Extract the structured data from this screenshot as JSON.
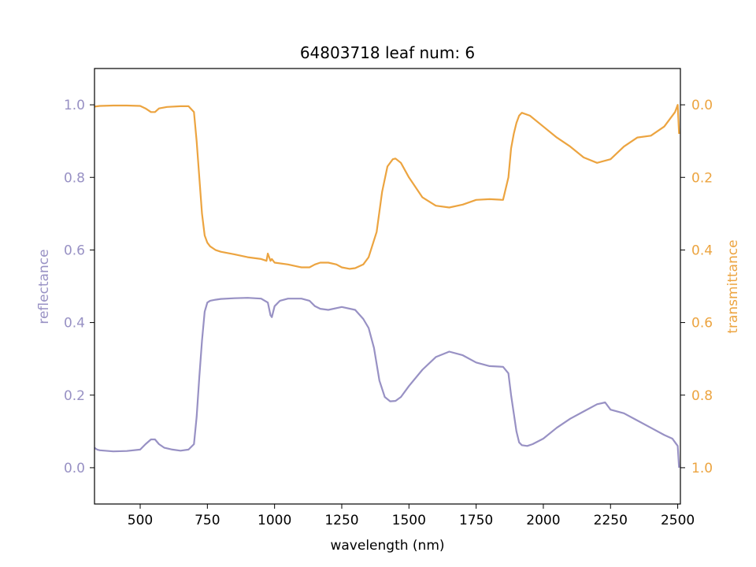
{
  "chart_data": {
    "type": "line",
    "title": "64803718 leaf num: 6",
    "xlabel": "wavelength (nm)",
    "ylabel_left": "reflectance",
    "ylabel_right": "transmittance",
    "xlim": [
      330,
      2510
    ],
    "ylim_left": [
      -0.1,
      1.1
    ],
    "ylim_right": [
      1.1,
      -0.1
    ],
    "x_ticks": [
      500,
      750,
      1000,
      1250,
      1500,
      1750,
      2000,
      2250,
      2500
    ],
    "y_left_ticks": [
      0.0,
      0.2,
      0.4,
      0.6,
      0.8,
      1.0
    ],
    "y_right_ticks": [
      0.0,
      0.2,
      0.4,
      0.6,
      0.8,
      1.0
    ],
    "colors": {
      "reflectance": "#9891c4",
      "transmittance": "#eca440"
    },
    "grid": false,
    "series": [
      {
        "key": "reflectance",
        "axis": "left",
        "x": [
          330,
          340,
          350,
          400,
          450,
          500,
          520,
          540,
          555,
          570,
          590,
          620,
          650,
          680,
          700,
          710,
          720,
          730,
          740,
          750,
          760,
          780,
          800,
          850,
          900,
          950,
          975,
          985,
          990,
          1000,
          1020,
          1050,
          1100,
          1130,
          1150,
          1170,
          1200,
          1250,
          1300,
          1330,
          1350,
          1370,
          1390,
          1410,
          1430,
          1450,
          1470,
          1500,
          1550,
          1600,
          1650,
          1700,
          1750,
          1800,
          1850,
          1870,
          1880,
          1890,
          1900,
          1910,
          1920,
          1940,
          1960,
          2000,
          2050,
          2100,
          2150,
          2200,
          2230,
          2250,
          2300,
          2350,
          2400,
          2450,
          2480,
          2490,
          2500,
          2505
        ],
        "values": [
          0.055,
          0.05,
          0.048,
          0.045,
          0.046,
          0.05,
          0.065,
          0.078,
          0.078,
          0.065,
          0.055,
          0.05,
          0.047,
          0.05,
          0.065,
          0.14,
          0.25,
          0.35,
          0.43,
          0.455,
          0.46,
          0.463,
          0.465,
          0.467,
          0.468,
          0.466,
          0.455,
          0.42,
          0.415,
          0.445,
          0.46,
          0.466,
          0.466,
          0.46,
          0.445,
          0.438,
          0.435,
          0.443,
          0.435,
          0.41,
          0.385,
          0.33,
          0.24,
          0.195,
          0.183,
          0.184,
          0.195,
          0.225,
          0.27,
          0.305,
          0.32,
          0.31,
          0.29,
          0.28,
          0.278,
          0.26,
          0.2,
          0.15,
          0.1,
          0.07,
          0.062,
          0.06,
          0.065,
          0.08,
          0.11,
          0.135,
          0.155,
          0.175,
          0.18,
          0.16,
          0.15,
          0.13,
          0.11,
          0.09,
          0.08,
          0.07,
          0.06,
          0.0
        ]
      },
      {
        "key": "transmittance",
        "axis": "right",
        "x": [
          330,
          350,
          400,
          450,
          500,
          520,
          540,
          555,
          570,
          600,
          650,
          680,
          700,
          710,
          720,
          730,
          740,
          750,
          760,
          780,
          800,
          850,
          900,
          950,
          970,
          975,
          980,
          985,
          990,
          1000,
          1050,
          1100,
          1130,
          1150,
          1170,
          1200,
          1230,
          1250,
          1280,
          1300,
          1330,
          1350,
          1380,
          1400,
          1420,
          1440,
          1450,
          1470,
          1500,
          1550,
          1600,
          1650,
          1700,
          1750,
          1800,
          1850,
          1870,
          1880,
          1890,
          1900,
          1910,
          1920,
          1950,
          2000,
          2050,
          2100,
          2150,
          2200,
          2250,
          2300,
          2350,
          2400,
          2450,
          2490,
          2500,
          2505
        ],
        "values": [
          0.005,
          0.003,
          0.002,
          0.002,
          0.003,
          0.01,
          0.02,
          0.02,
          0.01,
          0.006,
          0.004,
          0.004,
          0.02,
          0.1,
          0.2,
          0.3,
          0.36,
          0.38,
          0.39,
          0.4,
          0.405,
          0.412,
          0.42,
          0.425,
          0.43,
          0.41,
          0.42,
          0.43,
          0.425,
          0.435,
          0.44,
          0.448,
          0.448,
          0.44,
          0.435,
          0.435,
          0.44,
          0.448,
          0.452,
          0.45,
          0.44,
          0.42,
          0.35,
          0.24,
          0.17,
          0.15,
          0.148,
          0.16,
          0.2,
          0.255,
          0.278,
          0.283,
          0.275,
          0.262,
          0.26,
          0.262,
          0.2,
          0.12,
          0.08,
          0.05,
          0.03,
          0.022,
          0.03,
          0.06,
          0.09,
          0.115,
          0.145,
          0.16,
          0.15,
          0.115,
          0.09,
          0.085,
          0.06,
          0.02,
          0.0,
          0.08
        ]
      }
    ]
  }
}
